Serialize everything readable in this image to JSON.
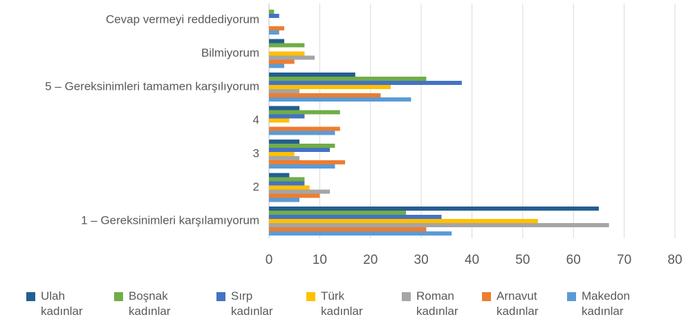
{
  "chart_data": {
    "type": "hbar",
    "categories": [
      "Cevap vermeyi reddediyorum",
      "Bilmiyorum",
      "5 – Gereksinimleri tamamen karşılıyorum",
      "4",
      "3",
      "2",
      "1 – Gereksinimleri karşılamıyorum"
    ],
    "series": [
      {
        "name": "Ulah kadınlar",
        "color": "#255e91",
        "values": [
          0,
          3,
          17,
          6,
          6,
          4,
          65
        ]
      },
      {
        "name": "Boşnak kadınlar",
        "color": "#70ad47",
        "values": [
          1,
          7,
          31,
          14,
          13,
          7,
          27
        ]
      },
      {
        "name": "Sırp kadınlar",
        "color": "#4472c4",
        "values": [
          2,
          0,
          38,
          7,
          12,
          7,
          34
        ]
      },
      {
        "name": "Türk kadınlar",
        "color": "#ffc000",
        "values": [
          0,
          7,
          24,
          4,
          5,
          8,
          53
        ]
      },
      {
        "name": "Roman kadınlar",
        "color": "#a5a5a5",
        "values": [
          0,
          9,
          6,
          0,
          6,
          12,
          67
        ]
      },
      {
        "name": "Arnavut kadınlar",
        "color": "#ed7d31",
        "values": [
          3,
          5,
          22,
          14,
          15,
          10,
          31
        ]
      },
      {
        "name": "Makedon kadınlar",
        "color": "#5b9bd5",
        "values": [
          2,
          3,
          28,
          13,
          13,
          6,
          36
        ]
      }
    ],
    "xlim": [
      0,
      80
    ],
    "xticks": [
      0,
      10,
      20,
      30,
      40,
      50,
      60,
      70,
      80
    ],
    "grid": true
  }
}
